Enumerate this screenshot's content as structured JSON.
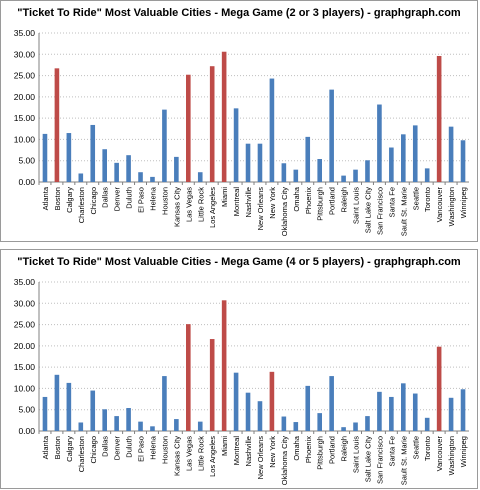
{
  "chart_data": [
    {
      "type": "bar",
      "title": "\"Ticket To Ride\" Most Valuable Cities -  Mega Game  (2 or 3 players) - graphgraph.com",
      "xlabel": "",
      "ylabel": "",
      "ylim": [
        0,
        35
      ],
      "yticks": [
        "0.00",
        "5.00",
        "10.00",
        "15.00",
        "20.00",
        "25.00",
        "30.00",
        "35.00"
      ],
      "grid": true,
      "colors": {
        "default": "#4a7ebb",
        "highlight": "#be4b48"
      },
      "categories": [
        "Atlanta",
        "Boston",
        "Calgary",
        "Charleston",
        "Chicago",
        "Dallas",
        "Denver",
        "Duluth",
        "El Paso",
        "Helena",
        "Houston",
        "Kansas City",
        "Las Vegas",
        "Little Rock",
        "Los Angeles",
        "Miami",
        "Montreal",
        "Nashville",
        "New Orleans",
        "New York",
        "Oklahoma City",
        "Omaha",
        "Phoenix",
        "Pittsburgh",
        "Portland",
        "Raleigh",
        "Saint Louis",
        "Salt Lake City",
        "San Francisco",
        "Santa Fe",
        "Sault St. Marie",
        "Seattle",
        "Toronto",
        "Vancouver",
        "Washington",
        "Winnipeg"
      ],
      "values": [
        11.3,
        26.7,
        11.5,
        2.0,
        13.4,
        7.7,
        4.5,
        6.3,
        2.3,
        1.2,
        17.0,
        5.9,
        25.2,
        2.3,
        27.2,
        30.6,
        17.3,
        9.0,
        9.0,
        24.3,
        4.4,
        2.9,
        10.6,
        5.4,
        21.7,
        1.5,
        2.9,
        5.1,
        18.2,
        8.1,
        11.2,
        13.3,
        3.2,
        29.6,
        13.0,
        9.8
      ],
      "highlighted": [
        "Boston",
        "Las Vegas",
        "Los Angeles",
        "Miami",
        "Vancouver"
      ]
    },
    {
      "type": "bar",
      "title": "\"Ticket To Ride\" Most Valuable Cities -  Mega Game  (4 or 5 players) - graphgraph.com",
      "xlabel": "",
      "ylabel": "",
      "ylim": [
        0,
        35
      ],
      "yticks": [
        "0.00",
        "5.00",
        "10.00",
        "15.00",
        "20.00",
        "25.00",
        "30.00",
        "35.00"
      ],
      "grid": true,
      "colors": {
        "default": "#4a7ebb",
        "highlight": "#be4b48"
      },
      "categories": [
        "Atlanta",
        "Boston",
        "Calgary",
        "Charleston",
        "Chicago",
        "Dallas",
        "Denver",
        "Duluth",
        "El Paso",
        "Helena",
        "Houston",
        "Kansas City",
        "Las Vegas",
        "Little Rock",
        "Los Angeles",
        "Miami",
        "Montreal",
        "Nashville",
        "New Orleans",
        "New York",
        "Oklahoma City",
        "Omaha",
        "Phoenix",
        "Pittsburgh",
        "Portland",
        "Raleigh",
        "Saint Louis",
        "Salt Lake City",
        "San Francisco",
        "Santa Fe",
        "Sault St. Marie",
        "Seattle",
        "Toronto",
        "Vancouver",
        "Washington",
        "Winnipeg"
      ],
      "values": [
        8.0,
        13.2,
        11.3,
        2.0,
        9.5,
        5.1,
        3.5,
        5.4,
        2.2,
        1.1,
        12.9,
        2.8,
        25.1,
        2.2,
        21.6,
        30.7,
        13.7,
        9.0,
        7.0,
        13.9,
        3.4,
        2.1,
        10.6,
        4.2,
        12.9,
        0.9,
        2.0,
        3.5,
        9.2,
        8.0,
        11.2,
        8.8,
        3.1,
        19.8,
        7.8,
        9.8
      ],
      "highlighted": [
        "Las Vegas",
        "Los Angeles",
        "Miami",
        "New York",
        "Vancouver"
      ]
    }
  ]
}
